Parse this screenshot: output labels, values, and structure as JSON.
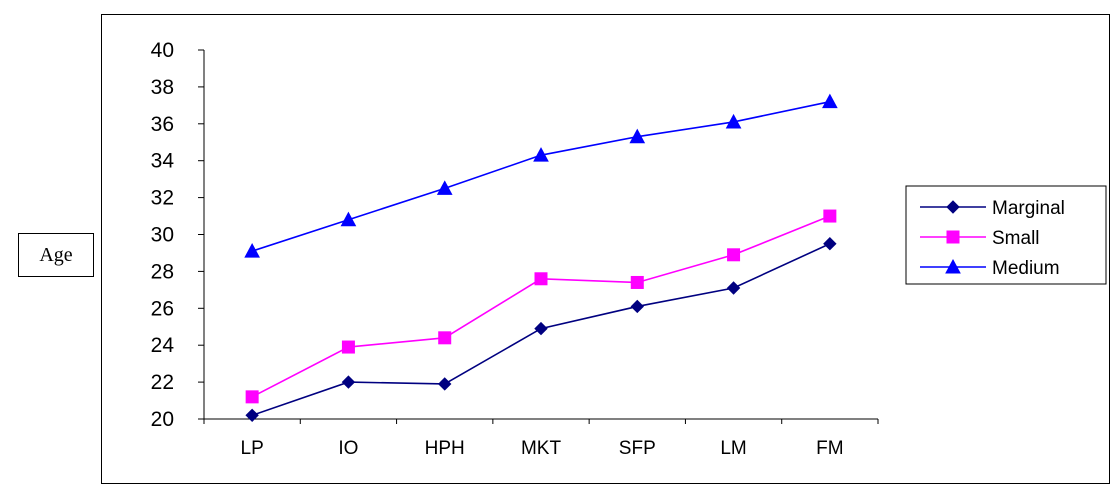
{
  "chart_data": {
    "type": "line",
    "ylabel": "Age",
    "xlabel": "",
    "title": "",
    "ylim": [
      20,
      40
    ],
    "yticks": [
      20,
      22,
      24,
      26,
      28,
      30,
      32,
      34,
      36,
      38,
      40
    ],
    "categories": [
      "LP",
      "IO",
      "HPH",
      "MKT",
      "SFP",
      "LM",
      "FM"
    ],
    "legend_position": "right",
    "grid": false,
    "series": [
      {
        "name": "Marginal",
        "color": "#000080",
        "marker": "diamond",
        "values": [
          20.2,
          22.0,
          21.9,
          24.9,
          26.1,
          27.1,
          29.5
        ]
      },
      {
        "name": "Small",
        "color": "#FF00FF",
        "marker": "square",
        "values": [
          21.2,
          23.9,
          24.4,
          27.6,
          27.4,
          28.9,
          31.0
        ]
      },
      {
        "name": "Medium",
        "color": "#0000FF",
        "marker": "triangle",
        "values": [
          29.1,
          30.8,
          32.5,
          34.3,
          35.3,
          36.1,
          37.2
        ]
      }
    ]
  }
}
